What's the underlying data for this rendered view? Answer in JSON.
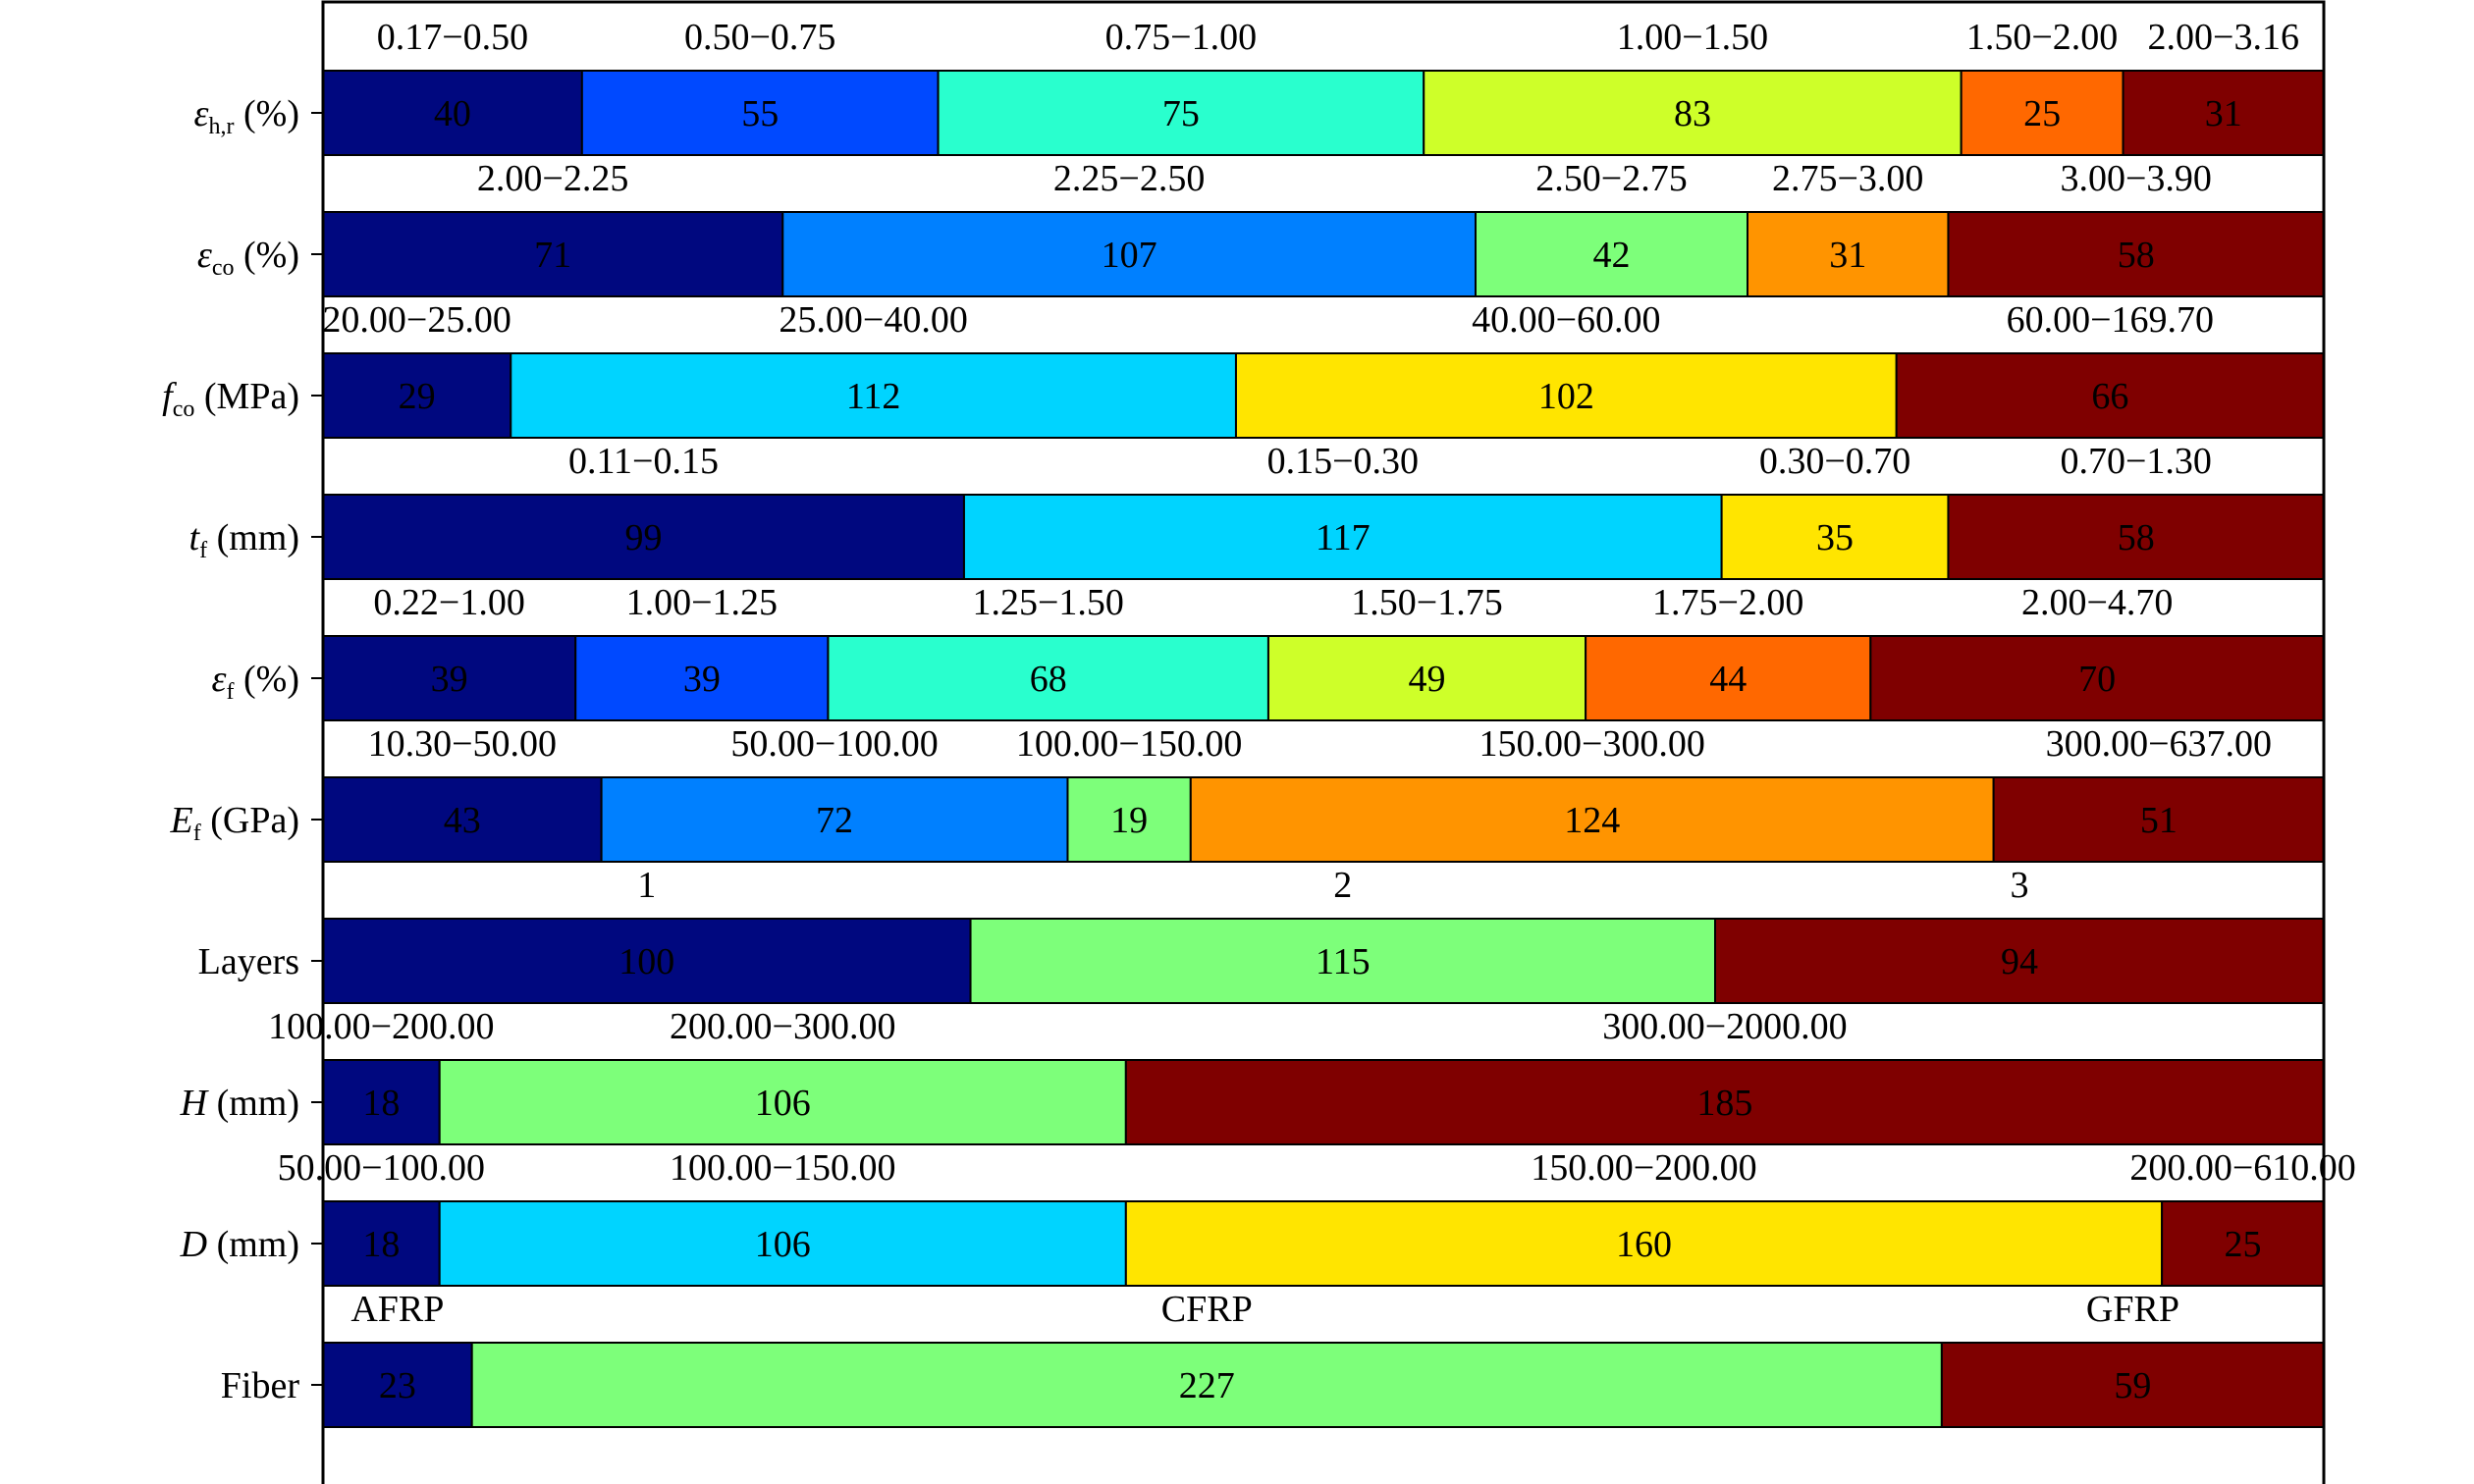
{
  "chart_data": {
    "type": "bar",
    "orientation": "horizontal-stacked",
    "grid": false,
    "legend": "none",
    "rows": [
      {
        "label": "εh,r (%)",
        "label_parts": [
          {
            "t": "ε",
            "i": true
          },
          {
            "t": "h,r",
            "sub": true
          },
          {
            "t": " (%)"
          }
        ],
        "segments": [
          {
            "range": "0.17−0.50",
            "value": 40,
            "color": "#00087f"
          },
          {
            "range": "0.50−0.75",
            "value": 55,
            "color": "#0049ff"
          },
          {
            "range": "0.75−1.00",
            "value": 75,
            "color": "#29ffce"
          },
          {
            "range": "1.00−1.50",
            "value": 83,
            "color": "#ceff29"
          },
          {
            "range": "1.50−2.00",
            "value": 25,
            "color": "#ff6800"
          },
          {
            "range": "2.00−3.16",
            "value": 31,
            "color": "#7f0000"
          }
        ]
      },
      {
        "label": "εco (%)",
        "label_parts": [
          {
            "t": "ε",
            "i": true
          },
          {
            "t": "co",
            "sub": true
          },
          {
            "t": " (%)"
          }
        ],
        "segments": [
          {
            "range": "2.00−2.25",
            "value": 71,
            "color": "#00087f"
          },
          {
            "range": "2.25−2.50",
            "value": 107,
            "color": "#0080ff"
          },
          {
            "range": "2.50−2.75",
            "value": 42,
            "color": "#7dff7a"
          },
          {
            "range": "2.75−3.00",
            "value": 31,
            "color": "#ff9400"
          },
          {
            "range": "3.00−3.90",
            "value": 58,
            "color": "#7f0000"
          }
        ]
      },
      {
        "label": "fco (MPa)",
        "label_parts": [
          {
            "t": "f",
            "i": true
          },
          {
            "t": "co",
            "sub": true
          },
          {
            "t": " (MPa)"
          }
        ],
        "segments": [
          {
            "range": "20.00−25.00",
            "value": 29,
            "color": "#00087f"
          },
          {
            "range": "25.00−40.00",
            "value": 112,
            "color": "#00d4ff"
          },
          {
            "range": "40.00−60.00",
            "value": 102,
            "color": "#ffe500"
          },
          {
            "range": "60.00−169.70",
            "value": 66,
            "color": "#7f0000"
          }
        ]
      },
      {
        "label": "tf (mm)",
        "label_parts": [
          {
            "t": "t",
            "i": true
          },
          {
            "t": "f",
            "sub": true
          },
          {
            "t": " (mm)"
          }
        ],
        "segments": [
          {
            "range": "0.11−0.15",
            "value": 99,
            "color": "#00087f"
          },
          {
            "range": "0.15−0.30",
            "value": 117,
            "color": "#00d4ff"
          },
          {
            "range": "0.30−0.70",
            "value": 35,
            "color": "#ffe500"
          },
          {
            "range": "0.70−1.30",
            "value": 58,
            "color": "#7f0000"
          }
        ]
      },
      {
        "label": "εf (%)",
        "label_parts": [
          {
            "t": "ε",
            "i": true
          },
          {
            "t": "f",
            "sub": true
          },
          {
            "t": " (%)"
          }
        ],
        "segments": [
          {
            "range": "0.22−1.00",
            "value": 39,
            "color": "#00087f"
          },
          {
            "range": "1.00−1.25",
            "value": 39,
            "color": "#0049ff"
          },
          {
            "range": "1.25−1.50",
            "value": 68,
            "color": "#29ffce"
          },
          {
            "range": "1.50−1.75",
            "value": 49,
            "color": "#ceff29"
          },
          {
            "range": "1.75−2.00",
            "value": 44,
            "color": "#ff6800"
          },
          {
            "range": "2.00−4.70",
            "value": 70,
            "color": "#7f0000"
          }
        ]
      },
      {
        "label": "Ef (GPa)",
        "label_parts": [
          {
            "t": "E",
            "i": true
          },
          {
            "t": "f",
            "sub": true
          },
          {
            "t": " (GPa)"
          }
        ],
        "segments": [
          {
            "range": "10.30−50.00",
            "value": 43,
            "color": "#00087f"
          },
          {
            "range": "50.00−100.00",
            "value": 72,
            "color": "#0080ff"
          },
          {
            "range": "100.00−150.00",
            "value": 19,
            "color": "#7dff7a"
          },
          {
            "range": "150.00−300.00",
            "value": 124,
            "color": "#ff9400"
          },
          {
            "range": "300.00−637.00",
            "value": 51,
            "color": "#7f0000"
          }
        ]
      },
      {
        "label": "Layers",
        "label_parts": [
          {
            "t": "Layers"
          }
        ],
        "segments": [
          {
            "range": "1",
            "value": 100,
            "color": "#00087f"
          },
          {
            "range": "2",
            "value": 115,
            "color": "#7dff7a"
          },
          {
            "range": "3",
            "value": 94,
            "color": "#7f0000"
          }
        ]
      },
      {
        "label": "H (mm)",
        "label_parts": [
          {
            "t": "H",
            "i": true
          },
          {
            "t": " (mm)"
          }
        ],
        "segments": [
          {
            "range": "100.00−200.00",
            "value": 18,
            "color": "#00087f"
          },
          {
            "range": "200.00−300.00",
            "value": 106,
            "color": "#7dff7a"
          },
          {
            "range": "300.00−2000.00",
            "value": 185,
            "color": "#7f0000"
          }
        ]
      },
      {
        "label": "D (mm)",
        "label_parts": [
          {
            "t": "D",
            "i": true
          },
          {
            "t": " (mm)"
          }
        ],
        "segments": [
          {
            "range": "50.00−100.00",
            "value": 18,
            "color": "#00087f"
          },
          {
            "range": "100.00−150.00",
            "value": 106,
            "color": "#00d4ff"
          },
          {
            "range": "150.00−200.00",
            "value": 160,
            "color": "#ffe500"
          },
          {
            "range": "200.00−610.00",
            "value": 25,
            "color": "#7f0000"
          }
        ]
      },
      {
        "label": "Fiber",
        "label_parts": [
          {
            "t": "Fiber"
          }
        ],
        "segments": [
          {
            "range": "AFRP",
            "value": 23,
            "color": "#00087f"
          },
          {
            "range": "CFRP",
            "value": 227,
            "color": "#7dff7a"
          },
          {
            "range": "GFRP",
            "value": 59,
            "color": "#7f0000"
          }
        ]
      }
    ]
  }
}
